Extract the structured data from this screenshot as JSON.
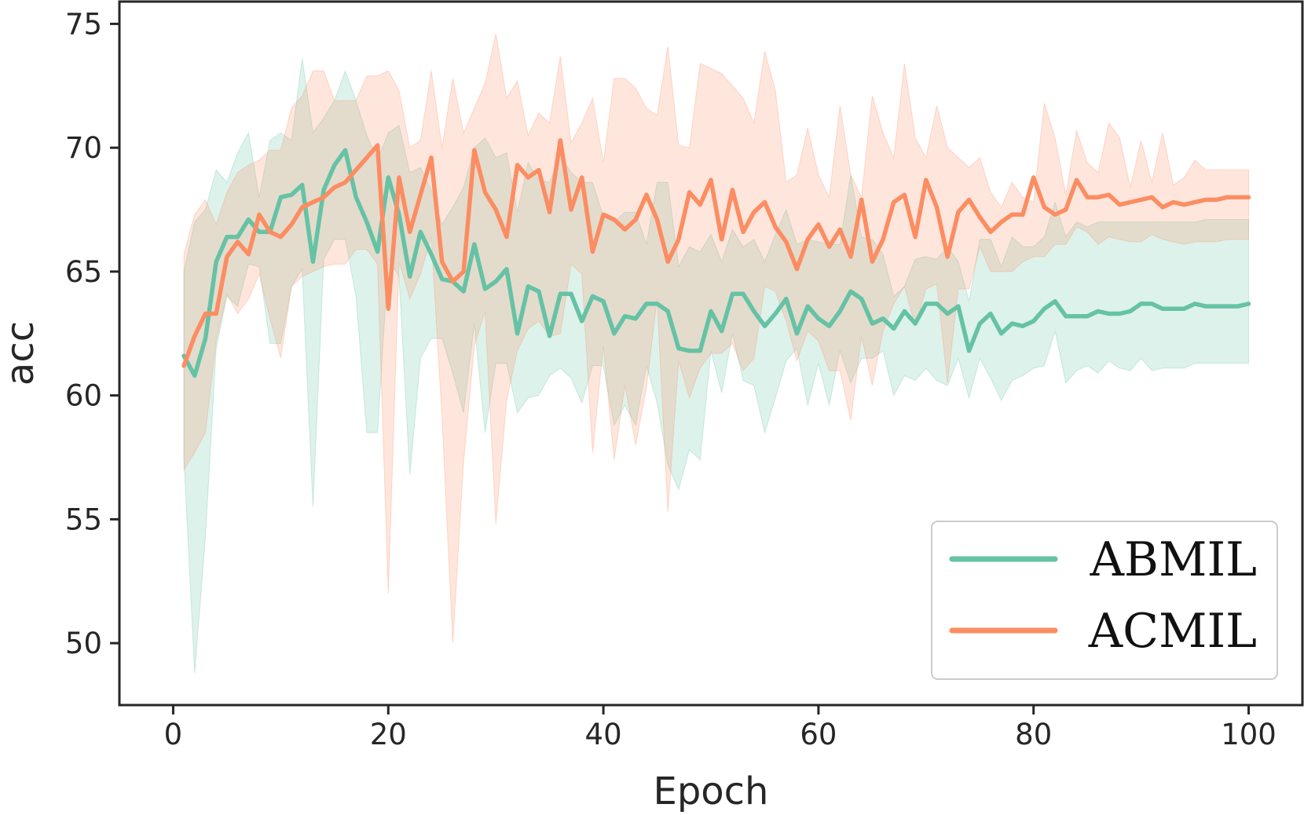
{
  "chart_data": {
    "type": "line",
    "xlabel": "Epoch",
    "ylabel": "acc",
    "xlim": [
      -5,
      105
    ],
    "ylim": [
      47.5,
      75.9
    ],
    "xticks": [
      0,
      20,
      40,
      60,
      80,
      100
    ],
    "yticks": [
      50,
      55,
      60,
      65,
      70,
      75
    ],
    "grid": false,
    "legend_position": "lower-right",
    "x": [
      1,
      2,
      3,
      4,
      5,
      6,
      7,
      8,
      9,
      10,
      11,
      12,
      13,
      14,
      15,
      16,
      17,
      18,
      19,
      20,
      21,
      22,
      23,
      24,
      25,
      26,
      27,
      28,
      29,
      30,
      31,
      32,
      33,
      34,
      35,
      36,
      37,
      38,
      39,
      40,
      41,
      42,
      43,
      44,
      45,
      46,
      47,
      48,
      49,
      50,
      51,
      52,
      53,
      54,
      55,
      56,
      57,
      58,
      59,
      60,
      61,
      62,
      63,
      64,
      65,
      66,
      67,
      68,
      69,
      70,
      71,
      72,
      73,
      74,
      75,
      76,
      77,
      78,
      79,
      80,
      81,
      82,
      83,
      84,
      85,
      86,
      87,
      88,
      89,
      90,
      91,
      92,
      93,
      94,
      95,
      96,
      97,
      98,
      99,
      100
    ],
    "series": [
      {
        "name": "ABMIL",
        "color": "#66c2a5",
        "values": [
          61.6,
          60.8,
          62.3,
          65.4,
          66.4,
          66.4,
          67.1,
          66.6,
          66.6,
          68.0,
          68.1,
          68.5,
          65.4,
          68.3,
          69.3,
          69.9,
          68.0,
          67.0,
          65.8,
          68.8,
          67.3,
          64.8,
          66.6,
          65.7,
          64.7,
          64.6,
          64.2,
          66.1,
          64.3,
          64.6,
          65.1,
          62.5,
          64.4,
          64.2,
          62.4,
          64.1,
          64.1,
          63.0,
          64.0,
          63.8,
          62.5,
          63.2,
          63.1,
          63.7,
          63.7,
          63.4,
          61.9,
          61.8,
          61.8,
          63.4,
          62.6,
          64.1,
          64.1,
          63.4,
          62.8,
          63.3,
          63.9,
          62.5,
          63.6,
          63.1,
          62.8,
          63.4,
          64.2,
          63.9,
          62.9,
          63.1,
          62.7,
          63.4,
          62.9,
          63.7,
          63.7,
          63.3,
          63.6,
          61.8,
          62.9,
          63.3,
          62.5,
          62.9,
          62.8,
          63.0,
          63.5,
          63.8,
          63.2,
          63.2,
          63.2,
          63.4,
          63.3,
          63.3,
          63.4,
          63.7,
          63.7,
          63.5,
          63.5,
          63.5,
          63.7,
          63.6,
          63.6,
          63.6,
          63.6,
          63.7
        ],
        "band_upper": [
          65.0,
          67.0,
          67.5,
          69.1,
          68.6,
          69.8,
          70.6,
          68.0,
          70.3,
          70.6,
          70.3,
          73.6,
          70.6,
          71.2,
          71.9,
          73.1,
          71.9,
          70.5,
          69.5,
          70.6,
          70.9,
          69.0,
          69.2,
          68.3,
          66.9,
          67.6,
          68.4,
          70.0,
          70.4,
          69.6,
          69.8,
          67.4,
          69.4,
          68.7,
          68.6,
          69.7,
          69.0,
          68.6,
          68.6,
          67.2,
          67.0,
          67.4,
          67.4,
          66.1,
          68.6,
          68.6,
          65.2,
          66.0,
          65.8,
          66.5,
          65.4,
          66.7,
          66.0,
          66.3,
          65.4,
          66.5,
          67.5,
          66.1,
          66.3,
          66.2,
          66.1,
          66.1,
          68.9,
          66.4,
          66.3,
          65.7,
          64.0,
          64.4,
          65.5,
          65.6,
          65.5,
          66.0,
          65.4,
          63.8,
          66.3,
          66.3,
          65.2,
          66.4,
          66.0,
          66.0,
          66.4,
          67.8,
          66.4,
          67.0,
          66.8,
          67.0,
          67.0,
          67.0,
          67.0,
          67.0,
          67.0,
          67.0,
          67.0,
          67.0,
          67.0,
          67.1,
          67.1,
          67.1,
          67.1,
          67.1
        ],
        "band_lower": [
          57.5,
          48.8,
          54.3,
          61.9,
          64.0,
          63.6,
          65.3,
          65.2,
          62.1,
          62.1,
          64.4,
          65.1,
          55.5,
          65.5,
          66.3,
          66.3,
          64.0,
          58.5,
          58.5,
          65.5,
          64.8,
          56.8,
          61.5,
          62.3,
          62.3,
          60.9,
          59.3,
          62.9,
          58.5,
          61.3,
          61.3,
          59.3,
          59.9,
          60.0,
          60.8,
          61.1,
          60.7,
          59.7,
          61.2,
          61.2,
          58.8,
          59.6,
          58.8,
          61.2,
          59.7,
          57.2,
          56.2,
          57.8,
          57.4,
          61.8,
          60.1,
          62.5,
          60.6,
          60.4,
          58.5,
          59.9,
          61.4,
          61.9,
          59.6,
          61.3,
          59.6,
          61.8,
          60.5,
          61.5,
          61.5,
          61.8,
          60.0,
          60.8,
          60.6,
          61.1,
          60.6,
          60.4,
          61.5,
          59.9,
          61.5,
          60.7,
          59.8,
          60.6,
          60.8,
          61.1,
          61.2,
          62.6,
          60.5,
          61.0,
          61.2,
          60.9,
          61.4,
          61.1,
          61.0,
          61.5,
          61.0,
          61.1,
          61.1,
          61.1,
          61.3,
          61.3,
          61.3,
          61.3,
          61.3,
          61.3
        ]
      },
      {
        "name": "ACMIL",
        "color": "#fc8d62",
        "values": [
          61.2,
          62.4,
          63.3,
          63.3,
          65.6,
          66.2,
          65.7,
          67.3,
          66.6,
          66.4,
          66.9,
          67.6,
          67.8,
          68.0,
          68.4,
          68.6,
          69.1,
          69.6,
          70.1,
          63.5,
          68.8,
          66.6,
          68.1,
          69.6,
          65.4,
          64.6,
          65.0,
          69.9,
          68.2,
          67.5,
          66.4,
          69.3,
          68.8,
          69.1,
          67.4,
          70.3,
          67.5,
          68.8,
          65.8,
          67.3,
          67.1,
          66.7,
          67.1,
          68.1,
          67.1,
          65.4,
          66.3,
          68.2,
          67.7,
          68.7,
          66.3,
          68.3,
          66.6,
          67.4,
          67.8,
          66.8,
          66.2,
          65.1,
          66.3,
          66.9,
          66.0,
          66.7,
          65.6,
          67.9,
          65.4,
          66.3,
          67.8,
          68.1,
          66.4,
          68.7,
          67.6,
          65.6,
          67.4,
          67.9,
          67.2,
          66.6,
          67.0,
          67.3,
          67.3,
          68.8,
          67.6,
          67.3,
          67.5,
          68.7,
          68.0,
          68.0,
          68.1,
          67.7,
          67.8,
          67.9,
          68.0,
          67.6,
          67.8,
          67.7,
          67.8,
          67.9,
          67.9,
          68.0,
          68.0,
          68.0
        ],
        "band_upper": [
          65.7,
          67.3,
          67.9,
          66.9,
          68.2,
          69.0,
          69.3,
          69.5,
          69.9,
          69.9,
          71.6,
          72.1,
          73.1,
          73.1,
          71.9,
          71.9,
          71.9,
          72.9,
          72.9,
          73.1,
          72.3,
          70.0,
          70.3,
          73.1,
          70.0,
          72.8,
          70.6,
          71.6,
          72.6,
          74.6,
          72.0,
          72.7,
          70.5,
          71.4,
          71.0,
          73.7,
          70.2,
          71.0,
          72.0,
          69.4,
          72.8,
          72.8,
          72.4,
          71.6,
          71.3,
          74.1,
          70.1,
          70.0,
          73.4,
          73.2,
          73.0,
          72.5,
          72.0,
          71.0,
          73.9,
          72.3,
          68.6,
          68.9,
          70.8,
          68.9,
          68.0,
          71.7,
          68.9,
          68.0,
          72.1,
          70.6,
          69.6,
          73.4,
          70.4,
          69.6,
          71.7,
          70.0,
          69.6,
          69.2,
          69.6,
          68.2,
          67.6,
          68.6,
          68.0,
          67.8,
          71.8,
          70.4,
          68.1,
          70.7,
          69.4,
          69.0,
          71.0,
          70.4,
          68.4,
          70.3,
          68.6,
          70.6,
          68.5,
          68.8,
          69.5,
          69.1,
          69.1,
          69.1,
          69.1,
          69.1
        ],
        "band_lower": [
          57.0,
          57.7,
          58.5,
          62.2,
          64.1,
          63.3,
          63.9,
          64.9,
          63.1,
          61.5,
          64.4,
          64.8,
          65.0,
          65.2,
          65.3,
          65.3,
          65.9,
          65.9,
          65.3,
          52.0,
          65.4,
          63.9,
          64.9,
          66.4,
          59.1,
          50.0,
          57.3,
          62.0,
          63.4,
          54.8,
          59.8,
          61.8,
          62.7,
          63.0,
          62.4,
          62.5,
          65.3,
          64.9,
          57.7,
          62.0,
          57.4,
          60.4,
          58.0,
          60.3,
          63.9,
          55.3,
          61.4,
          59.9,
          61.1,
          61.7,
          61.7,
          62.1,
          61.0,
          61.5,
          64.4,
          64.2,
          63.0,
          61.4,
          62.6,
          62.2,
          61.0,
          61.0,
          59.0,
          62.4,
          60.4,
          62.6,
          63.7,
          64.4,
          62.8,
          64.3,
          64.5,
          60.5,
          64.3,
          64.3,
          66.0,
          65.0,
          65.0,
          65.0,
          65.4,
          65.6,
          65.6,
          66.1,
          66.1,
          66.8,
          66.6,
          66.1,
          66.4,
          66.3,
          66.2,
          66.2,
          66.5,
          66.3,
          66.2,
          66.1,
          66.2,
          66.2,
          66.2,
          66.3,
          66.3,
          66.3
        ]
      }
    ]
  }
}
